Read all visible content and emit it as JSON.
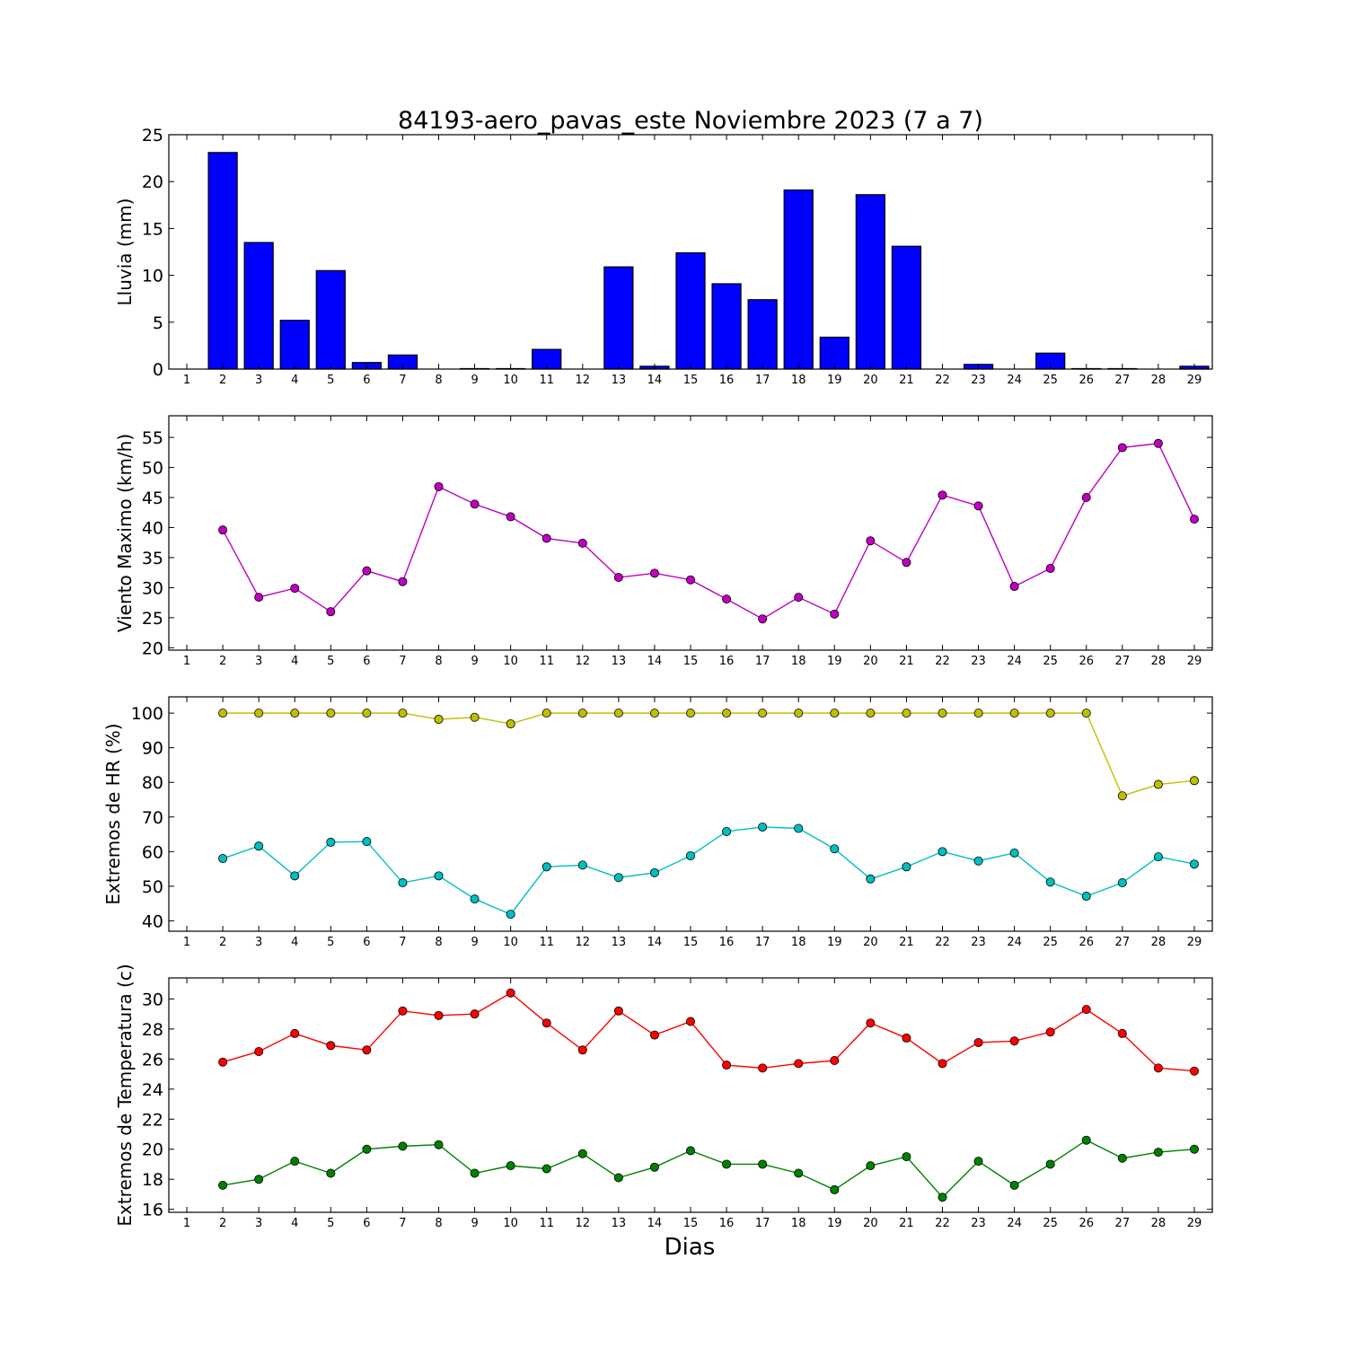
{
  "title": "84193-aero_pavas_este Noviembre 2023  (7 a 7)",
  "xlabel": "Dias",
  "chart_data": [
    {
      "type": "bar",
      "ylabel": "Lluvia (mm)",
      "ylim": [
        0,
        25
      ],
      "yticks": [
        0,
        5,
        10,
        15,
        20,
        25
      ],
      "color": "#0000ff",
      "xlim": [
        0.5,
        29.5
      ],
      "categories": [
        1,
        2,
        3,
        4,
        5,
        6,
        7,
        8,
        9,
        10,
        11,
        12,
        13,
        14,
        15,
        16,
        17,
        18,
        19,
        20,
        21,
        22,
        23,
        24,
        25,
        26,
        27,
        28,
        29
      ],
      "values": [
        0,
        23.1,
        13.5,
        5.2,
        10.5,
        0.7,
        1.5,
        0,
        0.05,
        0.05,
        2.1,
        0,
        10.9,
        0.3,
        12.4,
        9.1,
        7.4,
        19.1,
        3.4,
        18.6,
        13.1,
        0,
        0.5,
        0,
        1.7,
        0.05,
        0.05,
        0,
        0.3
      ]
    },
    {
      "type": "line",
      "ylabel": "Viento Maximo (km/h)",
      "ylim": [
        19.6,
        58.6
      ],
      "yticks": [
        20,
        25,
        30,
        35,
        40,
        45,
        50,
        55
      ],
      "xlim": [
        0.5,
        29.5
      ],
      "x": [
        2,
        3,
        4,
        5,
        6,
        7,
        8,
        9,
        10,
        11,
        12,
        13,
        14,
        15,
        16,
        17,
        18,
        19,
        20,
        21,
        22,
        23,
        24,
        25,
        26,
        27,
        28,
        29
      ],
      "series": [
        {
          "color": "#bf00bf",
          "values": [
            39.6,
            28.4,
            29.9,
            26.0,
            32.8,
            31.0,
            46.8,
            43.9,
            41.8,
            38.2,
            37.4,
            31.7,
            32.4,
            31.3,
            28.1,
            24.8,
            28.4,
            25.6,
            37.8,
            34.2,
            45.4,
            43.6,
            30.2,
            33.2,
            45.0,
            53.3,
            54.0,
            41.4
          ]
        }
      ]
    },
    {
      "type": "line",
      "ylabel": "Extremos de HR (%)",
      "ylim": [
        37,
        104.7
      ],
      "yticks": [
        40,
        50,
        60,
        70,
        80,
        90,
        100
      ],
      "xlim": [
        0.5,
        29.5
      ],
      "x": [
        2,
        3,
        4,
        5,
        6,
        7,
        8,
        9,
        10,
        11,
        12,
        13,
        14,
        15,
        16,
        17,
        18,
        19,
        20,
        21,
        22,
        23,
        24,
        25,
        26,
        27,
        28,
        29
      ],
      "series": [
        {
          "color": "#bfbf00",
          "values": [
            100,
            100,
            100,
            100,
            100,
            100,
            98.2,
            98.8,
            96.9,
            100,
            100,
            100,
            100,
            100,
            100,
            100,
            100,
            100,
            100,
            100,
            100,
            100,
            100,
            100,
            100,
            76.1,
            79.4,
            80.5
          ]
        },
        {
          "color": "#00bfbf",
          "values": [
            58.0,
            61.6,
            53.0,
            62.7,
            62.9,
            51.0,
            53.0,
            46.3,
            41.9,
            55.6,
            56.1,
            52.5,
            53.9,
            58.8,
            65.8,
            67.1,
            66.7,
            60.8,
            52.1,
            55.6,
            60.0,
            57.3,
            59.6,
            51.2,
            47.1,
            51.0,
            58.5,
            56.4
          ]
        }
      ]
    },
    {
      "type": "line",
      "ylabel": "Extremos de Temperatura (c)",
      "ylim": [
        15.8,
        31.4
      ],
      "yticks": [
        16,
        18,
        20,
        22,
        24,
        26,
        28,
        30
      ],
      "xlim": [
        0.5,
        29.5
      ],
      "x": [
        2,
        3,
        4,
        5,
        6,
        7,
        8,
        9,
        10,
        11,
        12,
        13,
        14,
        15,
        16,
        17,
        18,
        19,
        20,
        21,
        22,
        23,
        24,
        25,
        26,
        27,
        28,
        29
      ],
      "series": [
        {
          "color": "#ff0000",
          "values": [
            25.8,
            26.5,
            27.7,
            26.9,
            26.6,
            29.2,
            28.9,
            29.0,
            30.4,
            28.4,
            26.6,
            29.2,
            27.6,
            28.5,
            25.6,
            25.4,
            25.7,
            25.9,
            28.4,
            27.4,
            25.7,
            27.1,
            27.2,
            27.8,
            29.3,
            27.7,
            25.4,
            25.2
          ]
        },
        {
          "color": "#008000",
          "values": [
            17.6,
            18.0,
            19.2,
            18.4,
            20.0,
            20.2,
            20.3,
            18.4,
            18.9,
            18.7,
            19.7,
            18.1,
            18.8,
            19.9,
            19.0,
            19.0,
            18.4,
            17.3,
            18.9,
            19.5,
            16.8,
            19.2,
            17.6,
            19.0,
            20.6,
            19.4,
            19.8,
            20.0
          ]
        }
      ]
    }
  ]
}
